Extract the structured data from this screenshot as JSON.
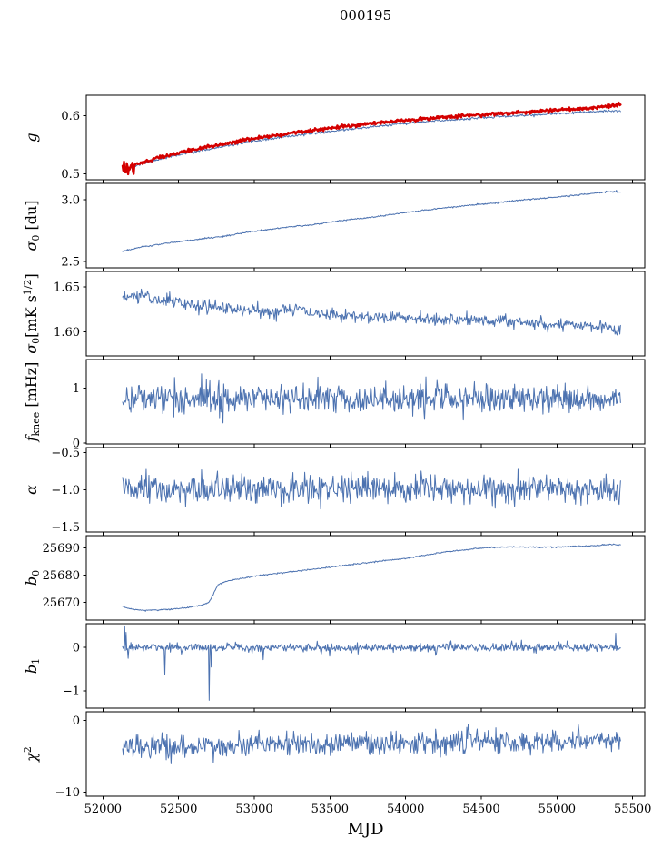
{
  "title": "000195",
  "colors": {
    "blue": "#4c72b0",
    "red": "#d40000",
    "axis": "#000000"
  },
  "chart_data": {
    "type": "line",
    "title": "000195",
    "xlabel": "MJD",
    "legend": "none",
    "grid": false,
    "xlim": [
      51890,
      55580
    ],
    "xticks": [
      52000,
      52500,
      53000,
      53500,
      54000,
      54500,
      55000,
      55500
    ],
    "xtick_labels": [
      "52000",
      "52500",
      "53000",
      "53500",
      "54000",
      "54500",
      "55000",
      "55500"
    ],
    "x_data_range": [
      52130,
      55420
    ],
    "points_per_series": 720,
    "subplots": [
      {
        "name": "g",
        "ylabel_segments": [
          {
            "t": "g",
            "style": "italic"
          }
        ],
        "ylim": [
          0.49,
          0.635
        ],
        "yticks": [
          0.5,
          0.6
        ],
        "ytick_labels": [
          "0.5",
          "0.6"
        ],
        "series": [
          {
            "name": "g-blue",
            "color": "blue",
            "width": 1,
            "seed": 11,
            "noise": 0.001,
            "keypoints": [
              [
                52130,
                0.5045
              ],
              [
                52250,
                0.517
              ],
              [
                52400,
                0.527
              ],
              [
                52600,
                0.538
              ],
              [
                52800,
                0.547
              ],
              [
                53000,
                0.5565
              ],
              [
                53200,
                0.5635
              ],
              [
                53400,
                0.57
              ],
              [
                53600,
                0.576
              ],
              [
                53800,
                0.5815
              ],
              [
                54000,
                0.5865
              ],
              [
                54200,
                0.591
              ],
              [
                54400,
                0.5945
              ],
              [
                54600,
                0.598
              ],
              [
                54800,
                0.6005
              ],
              [
                55000,
                0.6035
              ],
              [
                55200,
                0.606
              ],
              [
                55420,
                0.6085
              ]
            ]
          },
          {
            "name": "g-red",
            "color": "red",
            "width": 2.4,
            "seed": 12,
            "noise": 0.0014,
            "burst": {
              "until": 52210,
              "sigma": 0.006
            },
            "keypoints": [
              [
                52130,
                0.506
              ],
              [
                52250,
                0.519
              ],
              [
                52400,
                0.53
              ],
              [
                52600,
                0.542
              ],
              [
                52800,
                0.5515
              ],
              [
                53000,
                0.561
              ],
              [
                53200,
                0.5685
              ],
              [
                53400,
                0.5755
              ],
              [
                53600,
                0.5815
              ],
              [
                53800,
                0.587
              ],
              [
                54000,
                0.592
              ],
              [
                54200,
                0.5965
              ],
              [
                54400,
                0.6
              ],
              [
                54600,
                0.6035
              ],
              [
                54800,
                0.606
              ],
              [
                55000,
                0.6095
              ],
              [
                55200,
                0.6125
              ],
              [
                55420,
                0.619
              ]
            ]
          }
        ]
      },
      {
        "name": "sigma0-du",
        "ylabel_segments": [
          {
            "t": "σ",
            "style": "italic"
          },
          {
            "t": "0",
            "pos": "sub"
          },
          {
            "t": " [du]"
          }
        ],
        "ylim": [
          2.45,
          3.13
        ],
        "yticks": [
          2.5,
          3.0
        ],
        "ytick_labels": [
          "2.5",
          "3.0"
        ],
        "series": [
          {
            "name": "sigma0-du-line",
            "color": "blue",
            "width": 1,
            "seed": 21,
            "noise": 0.003,
            "keypoints": [
              [
                52130,
                2.585
              ],
              [
                52250,
                2.615
              ],
              [
                52400,
                2.645
              ],
              [
                52600,
                2.675
              ],
              [
                52800,
                2.705
              ],
              [
                53000,
                2.745
              ],
              [
                53200,
                2.775
              ],
              [
                53400,
                2.8
              ],
              [
                53600,
                2.835
              ],
              [
                53800,
                2.86
              ],
              [
                54000,
                2.895
              ],
              [
                54200,
                2.925
              ],
              [
                54400,
                2.95
              ],
              [
                54600,
                2.975
              ],
              [
                54800,
                3.0
              ],
              [
                55000,
                3.02
              ],
              [
                55200,
                3.045
              ],
              [
                55350,
                3.065
              ],
              [
                55420,
                3.06
              ]
            ]
          }
        ]
      },
      {
        "name": "sigma0-mk",
        "ylabel_segments": [
          {
            "t": "σ",
            "style": "italic"
          },
          {
            "t": "0",
            "pos": "sub"
          },
          {
            "t": "[mK s"
          },
          {
            "t": "1/2",
            "pos": "sup"
          },
          {
            "t": "]"
          }
        ],
        "ylim": [
          1.573,
          1.667
        ],
        "yticks": [
          1.6,
          1.65
        ],
        "ytick_labels": [
          "1.60",
          "1.65"
        ],
        "series": [
          {
            "name": "sigma0-mk-line",
            "color": "blue",
            "width": 1,
            "seed": 31,
            "noise": 0.0035,
            "keypoints": [
              [
                52130,
                1.637
              ],
              [
                52250,
                1.641
              ],
              [
                52350,
                1.636
              ],
              [
                52500,
                1.633
              ],
              [
                52650,
                1.628
              ],
              [
                52800,
                1.626
              ],
              [
                52950,
                1.624
              ],
              [
                53100,
                1.621
              ],
              [
                53250,
                1.627
              ],
              [
                53400,
                1.619
              ],
              [
                53600,
                1.618
              ],
              [
                53800,
                1.617
              ],
              [
                54000,
                1.616
              ],
              [
                54200,
                1.614
              ],
              [
                54400,
                1.613
              ],
              [
                54600,
                1.612
              ],
              [
                54800,
                1.61
              ],
              [
                55000,
                1.607
              ],
              [
                55150,
                1.609
              ],
              [
                55300,
                1.606
              ],
              [
                55380,
                1.6
              ],
              [
                55420,
                1.601
              ]
            ]
          }
        ]
      },
      {
        "name": "fknee",
        "ylabel_segments": [
          {
            "t": "f",
            "style": "italic"
          },
          {
            "t": "knee",
            "pos": "sub"
          },
          {
            "t": " [mHz]"
          }
        ],
        "ylim": [
          -0.02,
          1.52
        ],
        "yticks": [
          0,
          1
        ],
        "ytick_labels": [
          "0",
          "1"
        ],
        "series": [
          {
            "name": "fknee-line",
            "color": "blue",
            "width": 1,
            "seed": 41,
            "noise": 0.135,
            "clip": [
              0.05,
              1.48
            ],
            "keypoints": [
              [
                52130,
                0.82
              ],
              [
                55420,
                0.8
              ]
            ]
          }
        ]
      },
      {
        "name": "alpha",
        "ylabel_segments": [
          {
            "t": "α",
            "style": "italic"
          }
        ],
        "ylim": [
          -1.57,
          -0.43
        ],
        "yticks": [
          -1.5,
          -1.0,
          -0.5
        ],
        "ytick_labels": [
          "−1.5",
          "−1.0",
          "−0.5"
        ],
        "series": [
          {
            "name": "alpha-line",
            "color": "blue",
            "width": 1,
            "seed": 51,
            "noise": 0.095,
            "clip": [
              -1.5,
              -0.52
            ],
            "keypoints": [
              [
                52130,
                -1.0
              ],
              [
                55420,
                -1.0
              ]
            ]
          }
        ]
      },
      {
        "name": "b0",
        "ylabel_segments": [
          {
            "t": "b",
            "style": "italic"
          },
          {
            "t": "0",
            "pos": "sub"
          }
        ],
        "ylim": [
          25663.5,
          25694.5
        ],
        "yticks": [
          25670,
          25680,
          25690
        ],
        "ytick_labels": [
          "25670",
          "25680",
          "25690"
        ],
        "series": [
          {
            "name": "b0-line",
            "color": "blue",
            "width": 1,
            "seed": 61,
            "noise": 0.12,
            "keypoints": [
              [
                52130,
                25668.6
              ],
              [
                52180,
                25667.6
              ],
              [
                52250,
                25667.1
              ],
              [
                52350,
                25667.2
              ],
              [
                52450,
                25667.5
              ],
              [
                52550,
                25668.0
              ],
              [
                52650,
                25669.0
              ],
              [
                52700,
                25670.0
              ],
              [
                52720,
                25672.0
              ],
              [
                52760,
                25676.5
              ],
              [
                52820,
                25677.8
              ],
              [
                52900,
                25678.6
              ],
              [
                53000,
                25679.6
              ],
              [
                53100,
                25680.3
              ],
              [
                53200,
                25680.9
              ],
              [
                53400,
                25682.2
              ],
              [
                53600,
                25683.6
              ],
              [
                53800,
                25684.9
              ],
              [
                54000,
                25686.2
              ],
              [
                54100,
                25687.0
              ],
              [
                54200,
                25688.0
              ],
              [
                54300,
                25688.7
              ],
              [
                54400,
                25689.3
              ],
              [
                54500,
                25689.9
              ],
              [
                54600,
                25690.2
              ],
              [
                54700,
                25690.4
              ],
              [
                54800,
                25690.3
              ],
              [
                54900,
                25690.2
              ],
              [
                55000,
                25690.3
              ],
              [
                55100,
                25690.5
              ],
              [
                55200,
                25690.7
              ],
              [
                55300,
                25691.0
              ],
              [
                55380,
                25691.3
              ],
              [
                55420,
                25691.0
              ]
            ]
          }
        ]
      },
      {
        "name": "b1",
        "ylabel_segments": [
          {
            "t": "b",
            "style": "italic"
          },
          {
            "t": "1",
            "pos": "sub"
          }
        ],
        "ylim": [
          -1.4,
          0.55
        ],
        "yticks": [
          -1,
          0
        ],
        "ytick_labels": [
          "−1",
          "0"
        ],
        "series": [
          {
            "name": "b1-line",
            "color": "blue",
            "width": 1,
            "seed": 71,
            "noise": 0.05,
            "clip": [
              -1.3,
              0.52
            ],
            "spikes": [
              [
                52145,
                0.5
              ],
              [
                52155,
                0.35
              ],
              [
                52165,
                -0.25
              ],
              [
                52410,
                -0.62
              ],
              [
                52700,
                -1.22
              ],
              [
                52715,
                -0.45
              ],
              [
                53060,
                -0.28
              ],
              [
                53500,
                -0.2
              ],
              [
                54200,
                -0.18
              ],
              [
                55390,
                0.33
              ]
            ],
            "keypoints": [
              [
                52130,
                0.0
              ],
              [
                55420,
                0.0
              ]
            ]
          }
        ]
      },
      {
        "name": "chi2",
        "ylabel_segments": [
          {
            "t": "χ",
            "style": "italic"
          },
          {
            "t": "2",
            "pos": "sup"
          }
        ],
        "ylim": [
          -10.6,
          1.2
        ],
        "yticks": [
          -10,
          0
        ],
        "ytick_labels": [
          "−10",
          "0"
        ],
        "series": [
          {
            "name": "chi2-line",
            "color": "blue",
            "width": 1,
            "seed": 81,
            "noise": 0.8,
            "clip": [
              -7.2,
              -0.6
            ],
            "keypoints": [
              [
                52130,
                -3.8
              ],
              [
                52300,
                -3.5
              ],
              [
                52500,
                -3.8
              ],
              [
                52700,
                -3.6
              ],
              [
                52900,
                -3.4
              ],
              [
                53100,
                -3.2
              ],
              [
                53300,
                -3.3
              ],
              [
                53500,
                -3.2
              ],
              [
                53700,
                -3.1
              ],
              [
                53900,
                -3.2
              ],
              [
                54100,
                -3.0
              ],
              [
                54300,
                -3.1
              ],
              [
                54500,
                -2.9
              ],
              [
                54700,
                -3.0
              ],
              [
                54900,
                -2.9
              ],
              [
                55100,
                -3.0
              ],
              [
                55250,
                -2.8
              ],
              [
                55420,
                -3.0
              ]
            ]
          }
        ]
      }
    ]
  }
}
